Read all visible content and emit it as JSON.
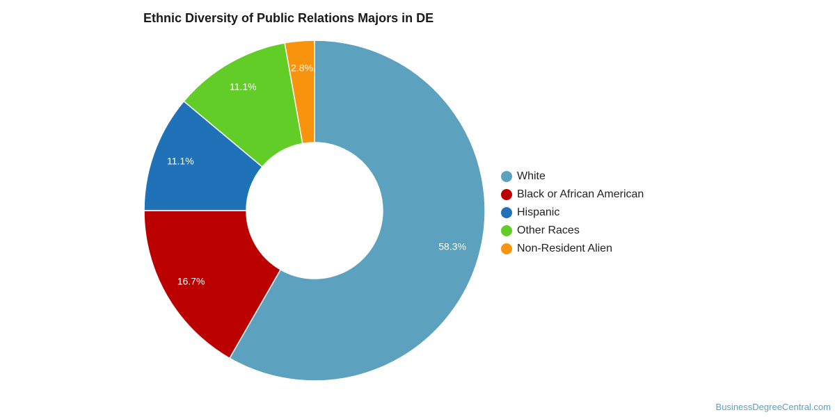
{
  "chart_data": {
    "type": "pie",
    "title": "Ethnic Diversity of Public Relations Majors in DE",
    "donut": true,
    "slices": [
      {
        "name": "White",
        "value": 58.3,
        "label": "58.3%",
        "color": "#5ca1bd"
      },
      {
        "name": "Black or African American",
        "value": 16.7,
        "label": "16.7%",
        "color": "#bb0000"
      },
      {
        "name": "Hispanic",
        "value": 11.1,
        "label": "11.1%",
        "color": "#1f72b8"
      },
      {
        "name": "Other Races",
        "value": 11.1,
        "label": "11.1%",
        "color": "#62cd26"
      },
      {
        "name": "Non-Resident Alien",
        "value": 2.8,
        "label": "2.8%",
        "color": "#f7930c"
      }
    ],
    "legend_position": "right"
  },
  "credit": "BusinessDegreeCentral.com"
}
